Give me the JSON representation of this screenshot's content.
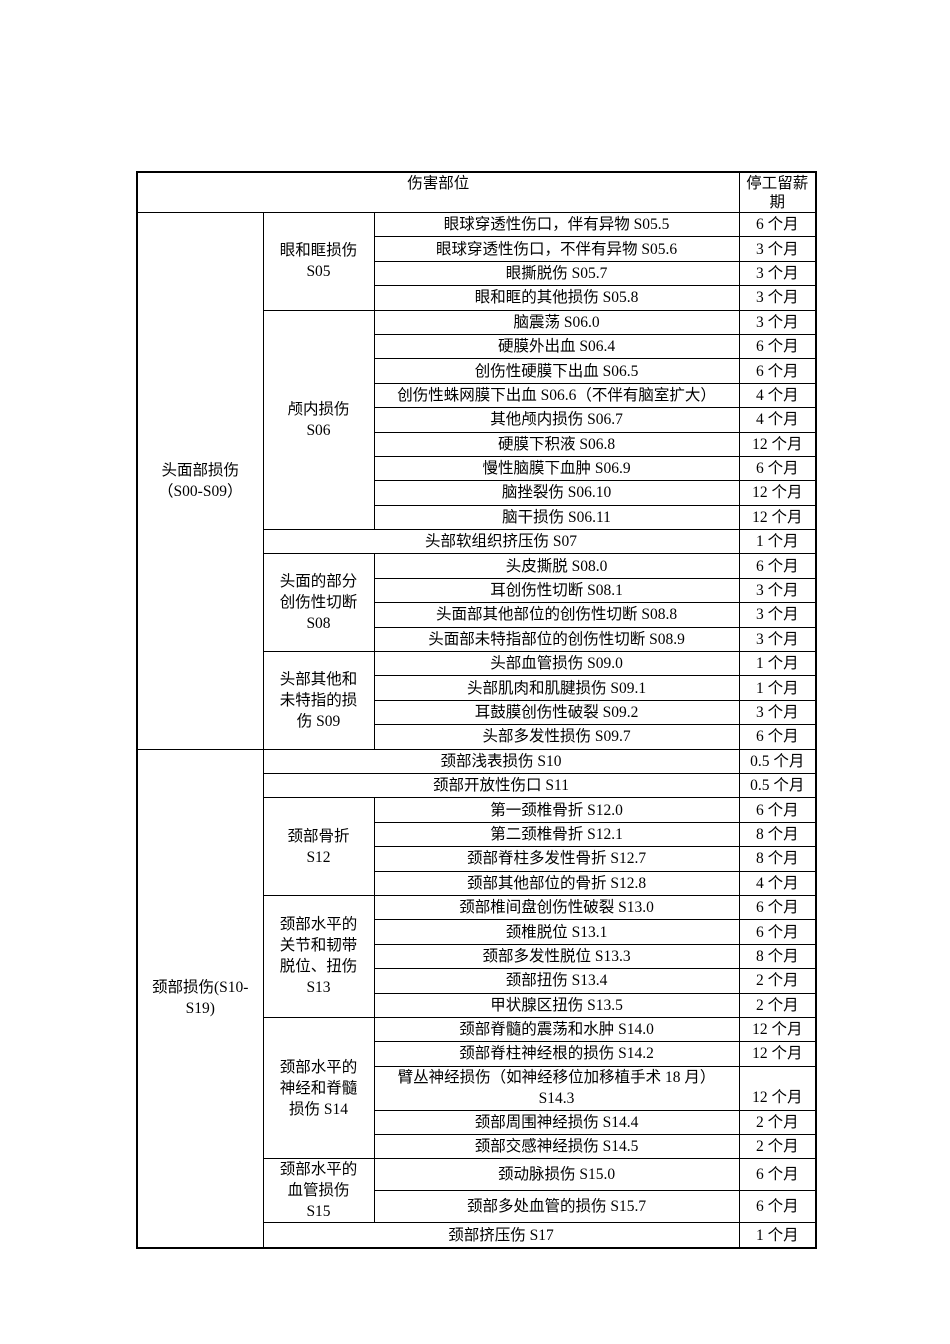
{
  "page": {
    "background": "#ffffff",
    "text_color": "#000000",
    "border_color": "#000000"
  },
  "table": {
    "header": {
      "injury_part_label": "伤害部位",
      "duration_label": "停工留薪\n期"
    },
    "groups": [
      {
        "category": "头面部损伤\n（S00-S09）",
        "subgroups": [
          {
            "name": "眼和眶损伤\nS05",
            "rows": [
              [
                "眼球穿透性伤口，伴有异物 S05.5",
                "6 个月"
              ],
              [
                "眼球穿透性伤口，不伴有异物 S05.6",
                "3 个月"
              ],
              [
                "眼撕脱伤 S05.7",
                "3 个月"
              ],
              [
                "眼和眶的其他损伤 S05.8",
                "3 个月"
              ]
            ]
          },
          {
            "name": "颅内损伤\nS06",
            "rows": [
              [
                "脑震荡 S06.0",
                "3 个月"
              ],
              [
                "硬膜外出血 S06.4",
                "6 个月"
              ],
              [
                "创伤性硬膜下出血 S06.5",
                "6 个月"
              ],
              [
                "创伤性蛛网膜下出血 S06.6（不伴有脑室扩大）",
                "4 个月"
              ],
              [
                "其他颅内损伤 S06.7",
                "4 个月"
              ],
              [
                "硬膜下积液 S06.8",
                "12 个月"
              ],
              [
                "慢性脑膜下血肿 S06.9",
                "6 个月"
              ],
              [
                "脑挫裂伤 S06.10",
                "12 个月"
              ],
              [
                "脑干损伤 S06.11",
                "12 个月"
              ]
            ]
          },
          {
            "name": null,
            "rows": [
              [
                "头部软组织挤压伤 S07",
                "1 个月"
              ]
            ]
          },
          {
            "name": "头面的部分\n创伤性切断\nS08",
            "rows": [
              [
                "头皮撕脱 S08.0",
                "6 个月"
              ],
              [
                "耳创伤性切断 S08.1",
                "3 个月"
              ],
              [
                "头面部其他部位的创伤性切断 S08.8",
                "3 个月"
              ],
              [
                "头面部未特指部位的创伤性切断 S08.9",
                "3 个月"
              ]
            ]
          },
          {
            "name": "头部其他和\n未特指的损\n伤 S09",
            "rows": [
              [
                "头部血管损伤 S09.0",
                "1 个月"
              ],
              [
                "头部肌肉和肌腱损伤 S09.1",
                "1 个月"
              ],
              [
                "耳鼓膜创伤性破裂 S09.2",
                "3 个月"
              ],
              [
                "头部多发性损伤 S09.7",
                "6 个月"
              ]
            ]
          }
        ]
      },
      {
        "category": "颈部损伤(S10-\nS19)",
        "subgroups": [
          {
            "name": null,
            "rows": [
              [
                "颈部浅表损伤 S10",
                "0.5 个月"
              ]
            ]
          },
          {
            "name": null,
            "rows": [
              [
                "颈部开放性伤口 S11",
                "0.5 个月"
              ]
            ]
          },
          {
            "name": "颈部骨折\nS12",
            "rows": [
              [
                "第一颈椎骨折 S12.0",
                "6 个月"
              ],
              [
                "第二颈椎骨折 S12.1",
                "8 个月"
              ],
              [
                "颈部脊柱多发性骨折 S12.7",
                "8 个月"
              ],
              [
                "颈部其他部位的骨折 S12.8",
                "4 个月"
              ]
            ]
          },
          {
            "name": "颈部水平的\n关节和韧带\n脱位、扭伤\nS13",
            "rows": [
              [
                "颈部椎间盘创伤性破裂 S13.0",
                "6 个月"
              ],
              [
                "颈椎脱位 S13.1",
                "6 个月"
              ],
              [
                "颈部多发性脱位 S13.3",
                "8 个月"
              ],
              [
                "颈部扭伤 S13.4",
                "2 个月"
              ],
              [
                "甲状腺区扭伤 S13.5",
                "2 个月"
              ]
            ]
          },
          {
            "name": "颈部水平的\n神经和脊髓\n损伤 S14",
            "rows": [
              [
                "颈部脊髓的震荡和水肿 S14.0",
                "12 个月"
              ],
              [
                "颈部脊柱神经根的损伤 S14.2",
                "12 个月"
              ],
              [
                "臂丛神经损伤（如神经移位加移植手术 18 月）\nS14.3",
                "12 个月"
              ],
              [
                "颈部周围神经损伤 S14.4",
                "2 个月"
              ],
              [
                "颈部交感神经损伤 S14.5",
                "2 个月"
              ]
            ]
          },
          {
            "name": "颈部水平的\n血管损伤\nS15",
            "rows": [
              [
                "颈动脉损伤 S15.0",
                "6 个月"
              ],
              [
                "颈部多处血管的损伤 S15.7",
                "6 个月"
              ]
            ]
          },
          {
            "name": null,
            "rows": [
              [
                "颈部挤压伤 S17",
                "1 个月"
              ]
            ]
          }
        ]
      }
    ]
  }
}
